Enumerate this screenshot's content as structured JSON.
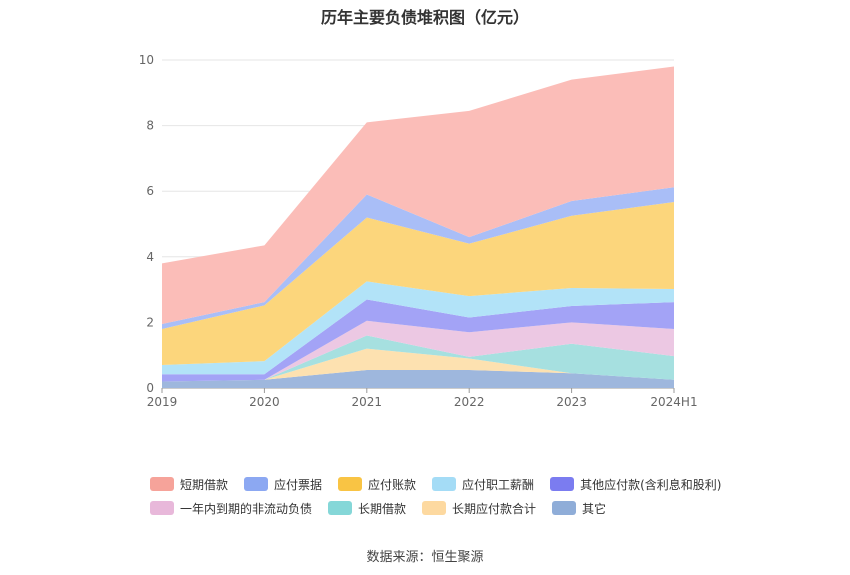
{
  "title": "历年主要负债堆积图（亿元）",
  "source": "数据来源：恒生聚源",
  "chart_data": {
    "type": "area",
    "stacked": true,
    "categories": [
      "2019",
      "2020",
      "2021",
      "2022",
      "2023",
      "2024H1"
    ],
    "ylim": [
      0,
      10
    ],
    "yticks": [
      "0",
      "2",
      "4",
      "6",
      "8",
      "10"
    ],
    "grid": true,
    "legend_position": "bottom",
    "series": [
      {
        "name": "其它",
        "color": "#9eb7dd",
        "values": [
          0.2,
          0.25,
          0.55,
          0.55,
          0.45,
          0.25
        ]
      },
      {
        "name": "长期应付款合计",
        "color": "#fde1b0",
        "values": [
          0,
          0,
          0.65,
          0.35,
          0,
          0
        ]
      },
      {
        "name": "长期借款",
        "color": "#a6e0e0",
        "values": [
          0,
          0,
          0.4,
          0.05,
          0.9,
          0.72
        ]
      },
      {
        "name": "一年内到期的非流动负债",
        "color": "#ecc8e3",
        "values": [
          0,
          0,
          0.45,
          0.75,
          0.65,
          0.83
        ]
      },
      {
        "name": "其他应付款(含利息和股利)",
        "color": "#a3a3f6",
        "values": [
          0.22,
          0.17,
          0.65,
          0.45,
          0.5,
          0.82
        ]
      },
      {
        "name": "应付职工薪酬",
        "color": "#b2e3f8",
        "values": [
          0.28,
          0.4,
          0.55,
          0.65,
          0.55,
          0.4
        ]
      },
      {
        "name": "应付账款",
        "color": "#fcd67c",
        "values": [
          1.1,
          1.7,
          1.95,
          1.6,
          2.2,
          2.65
        ]
      },
      {
        "name": "应付票据",
        "color": "#a9bef7",
        "values": [
          0.15,
          0.1,
          0.7,
          0.2,
          0.45,
          0.45
        ]
      },
      {
        "name": "短期借款",
        "color": "#fbbdb8",
        "values": [
          1.85,
          1.73,
          2.2,
          3.85,
          3.7,
          3.68
        ]
      }
    ],
    "legend": [
      [
        {
          "name": "短期借款",
          "color": "#f6a39a"
        },
        {
          "name": "应付票据",
          "color": "#8ca8f2"
        },
        {
          "name": "应付账款",
          "color": "#f9c444"
        },
        {
          "name": "应付职工薪酬",
          "color": "#a4dcf6"
        },
        {
          "name": "其他应付款(含利息和股利)",
          "color": "#7b7cf0"
        }
      ],
      [
        {
          "name": "一年内到期的非流动负债",
          "color": "#e8b8da"
        },
        {
          "name": "长期借款",
          "color": "#85d7d8"
        },
        {
          "name": "长期应付款合计",
          "color": "#fdd9a0"
        },
        {
          "name": "其它",
          "color": "#8fadd8"
        }
      ]
    ]
  }
}
